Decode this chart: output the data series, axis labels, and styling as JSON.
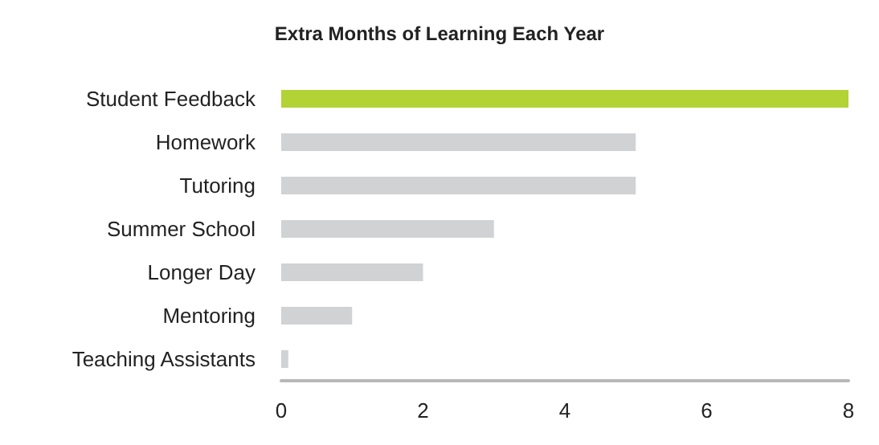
{
  "chart_data": {
    "type": "bar",
    "orientation": "horizontal",
    "title": "Extra Months of Learning Each Year",
    "categories": [
      "Student Feedback",
      "Homework",
      "Tutoring",
      "Summer School",
      "Longer Day",
      "Mentoring",
      "Teaching Assistants"
    ],
    "values": [
      8,
      5,
      5,
      3,
      2,
      1,
      0.1
    ],
    "colors": [
      "#b2d235",
      "#d1d2d4",
      "#d1d2d4",
      "#d1d2d4",
      "#d1d2d4",
      "#d1d2d4",
      "#d1d2d4"
    ],
    "xlim": [
      0,
      8
    ],
    "xticks": [
      0,
      2,
      4,
      6,
      8
    ]
  }
}
